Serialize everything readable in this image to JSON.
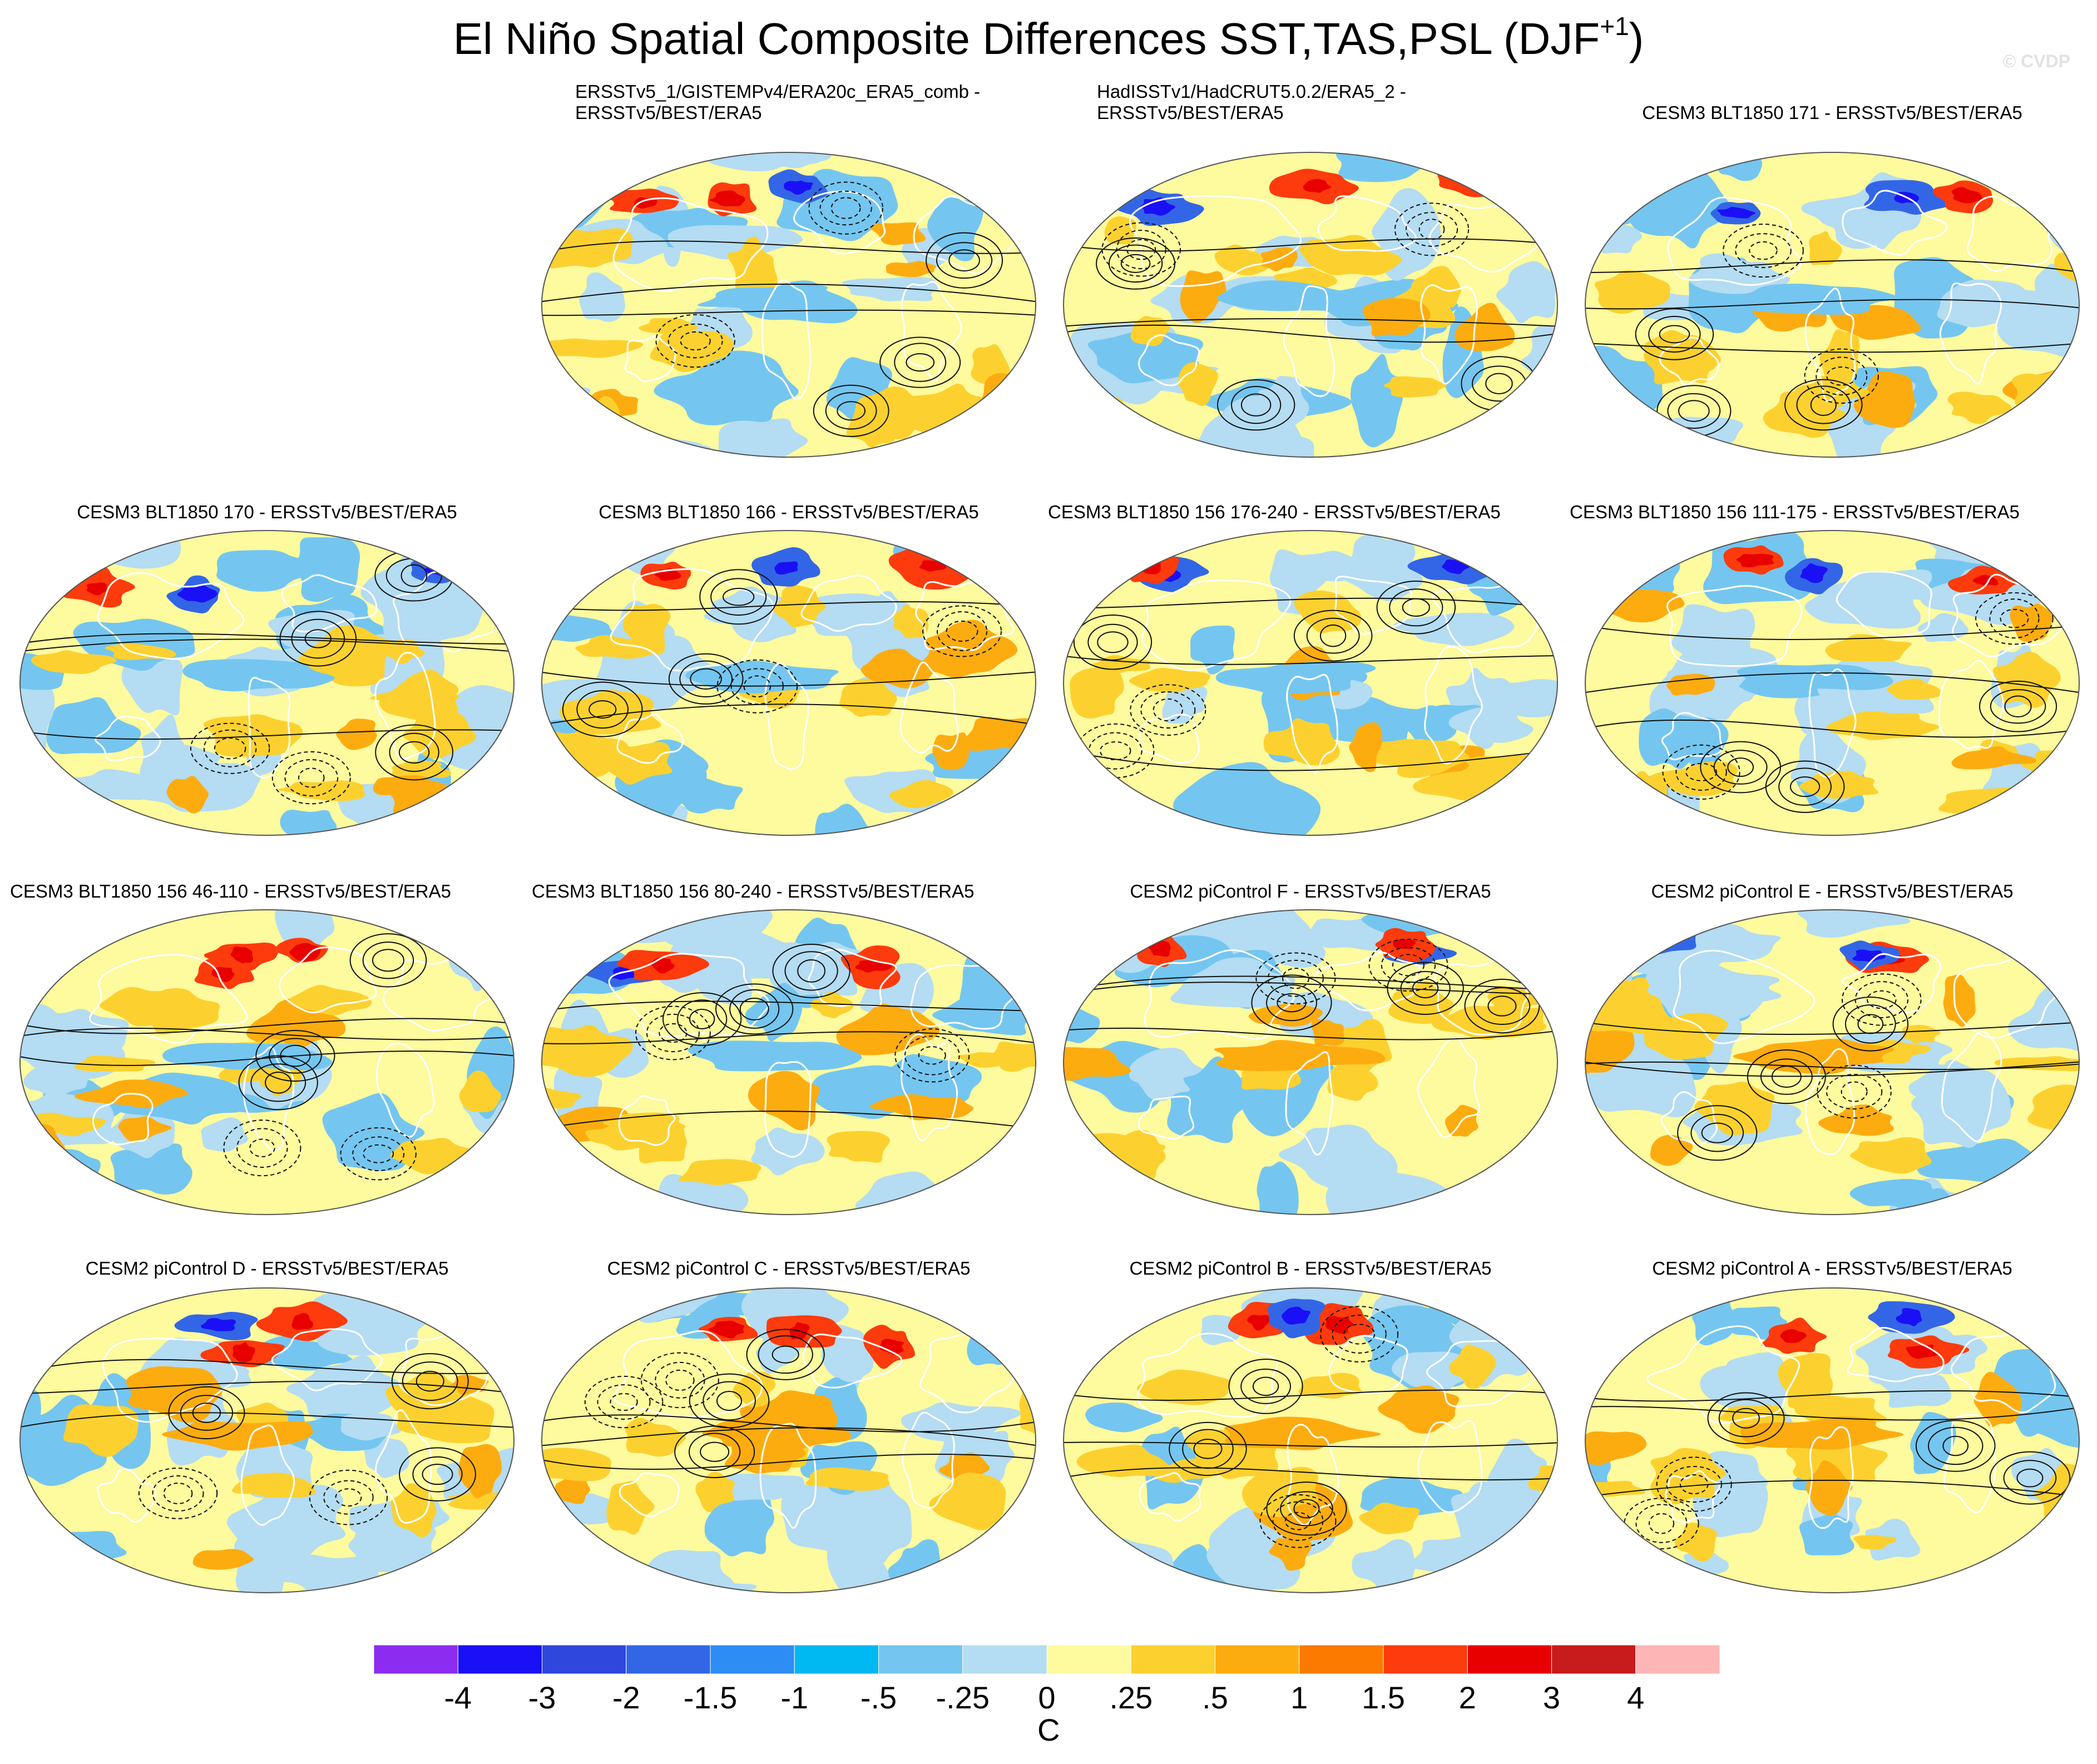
{
  "title_main": "El Niño Spatial Composite Differences SST,TAS,PSL (DJF",
  "title_sup": "+1",
  "title_end": ")",
  "watermark": "© CVDP",
  "panels": [
    {
      "title_lines": [
        "ERSSTv5_1/GISTEMPv4/ERA20c_ERA5_comb -",
        "ERSSTv5/BEST/ERA5"
      ],
      "seed": 3
    },
    {
      "title_lines": [
        "HadISSTv1/HadCRUT5.0.2/ERA5_2 -",
        "ERSSTv5/BEST/ERA5"
      ],
      "seed": 7
    },
    {
      "title_lines": [
        "CESM3 BLT1850 171 - ERSSTv5/BEST/ERA5"
      ],
      "seed": 11
    },
    {
      "title_lines": [
        "CESM3 BLT1850 170 - ERSSTv5/BEST/ERA5"
      ],
      "seed": 13
    },
    {
      "title_lines": [
        "CESM3 BLT1850 166 - ERSSTv5/BEST/ERA5"
      ],
      "seed": 17
    },
    {
      "title_lines": [
        "CESM3 BLT1850 156 176-240 - ERSSTv5/BEST/ERA5"
      ],
      "seed": 19
    },
    {
      "title_lines": [
        "CESM3 BLT1850 156 111-175 - ERSSTv5/BEST/ERA5"
      ],
      "seed": 23
    },
    {
      "title_lines": [
        "CESM3 BLT1850 156 46-110 - ERSSTv5/BEST/ERA5"
      ],
      "seed": 29
    },
    {
      "title_lines": [
        "CESM3 BLT1850 156 80-240 - ERSSTv5/BEST/ERA5"
      ],
      "seed": 31
    },
    {
      "title_lines": [
        "CESM2 piControl F - ERSSTv5/BEST/ERA5"
      ],
      "seed": 37
    },
    {
      "title_lines": [
        "CESM2 piControl E - ERSSTv5/BEST/ERA5"
      ],
      "seed": 41
    },
    {
      "title_lines": [
        "CESM2 piControl D - ERSSTv5/BEST/ERA5"
      ],
      "seed": 43
    },
    {
      "title_lines": [
        "CESM2 piControl C - ERSSTv5/BEST/ERA5"
      ],
      "seed": 47
    },
    {
      "title_lines": [
        "CESM2 piControl B - ERSSTv5/BEST/ERA5"
      ],
      "seed": 53
    },
    {
      "title_lines": [
        "CESM2 piControl A - ERSSTv5/BEST/ERA5"
      ],
      "seed": 59
    }
  ],
  "colorbar": {
    "colors": [
      "#8b2cf0",
      "#1a10f5",
      "#2f47dd",
      "#3366e6",
      "#2e8cf5",
      "#00b8f2",
      "#74c6f0",
      "#b4dcf2",
      "#fefa9e",
      "#fcd12f",
      "#fdac10",
      "#fd7a00",
      "#fd3b0c",
      "#e80000",
      "#c81b1b",
      "#fdb5b5"
    ],
    "tick_labels": [
      "-4",
      "-3",
      "-2",
      "-1.5",
      "-1",
      "-.5",
      "-.25",
      "0",
      ".25",
      ".5",
      "1",
      "1.5",
      "2",
      "3",
      "4"
    ],
    "units": "C"
  }
}
